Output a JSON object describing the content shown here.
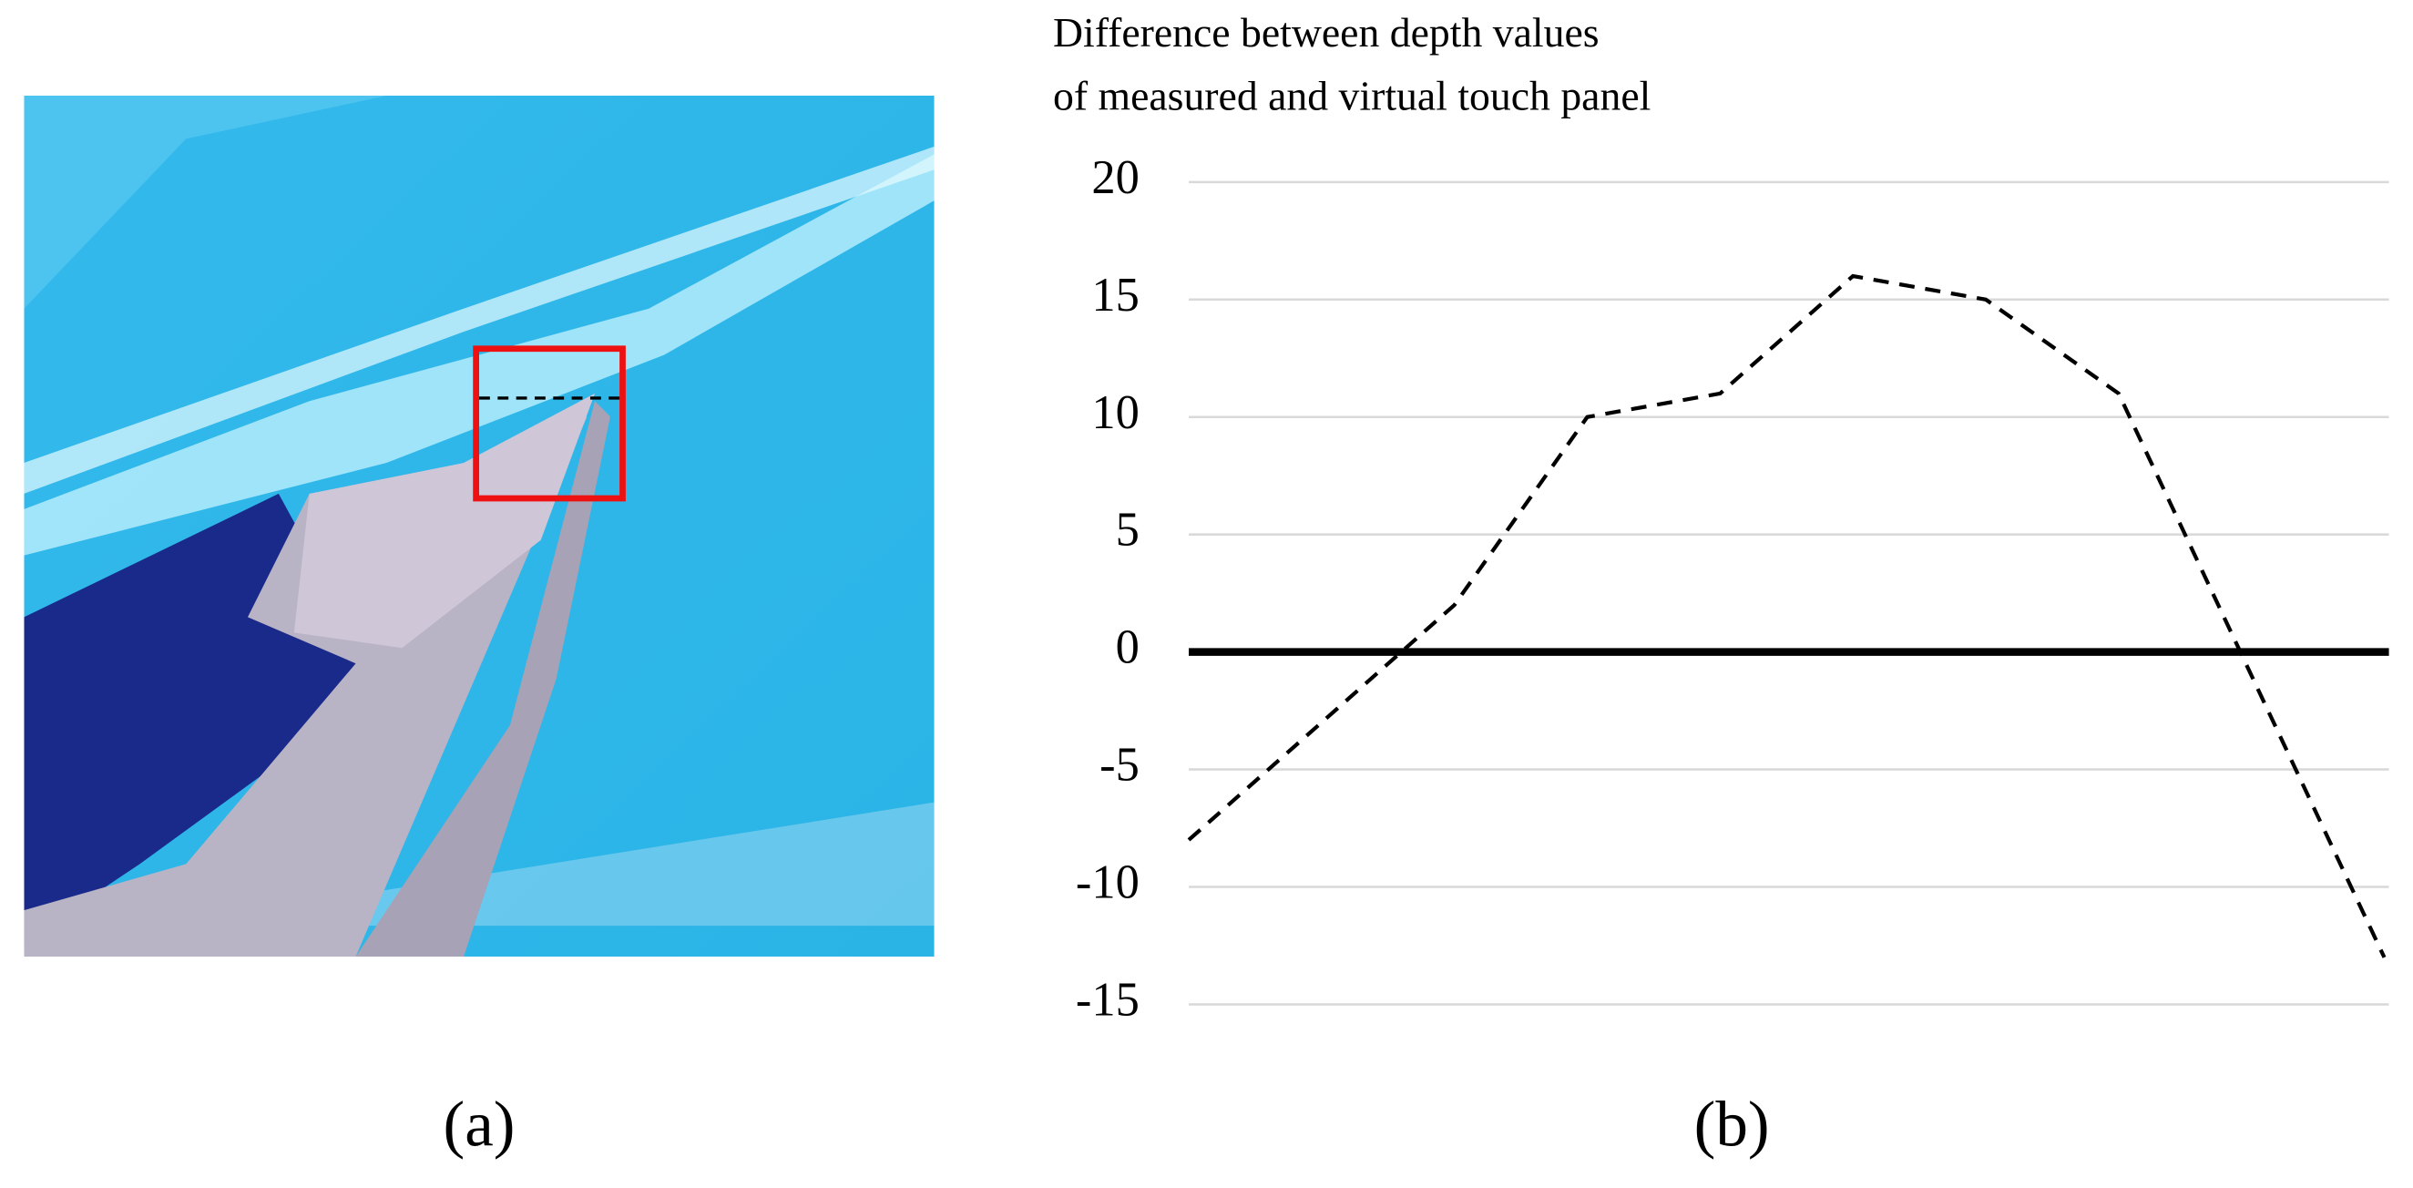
{
  "figure": {
    "panel_a": {
      "label": "(a)"
    }
  },
  "chart_data": {
    "type": "line",
    "panel_label": "(b)",
    "title": [
      "Difference between depth values",
      "of measured and virtual touch panel"
    ],
    "series": [
      {
        "color": "#000000",
        "dashed": true,
        "values": [
          -8,
          -3,
          2,
          10,
          11,
          16,
          15,
          11,
          -1,
          -13
        ]
      }
    ],
    "ylim": [
      -15,
      20
    ],
    "yticks": [
      20,
      15,
      10,
      5,
      0,
      -5,
      -10,
      -15
    ],
    "grid": true,
    "grid_color": "#d9d9d9",
    "zero_line": true
  }
}
